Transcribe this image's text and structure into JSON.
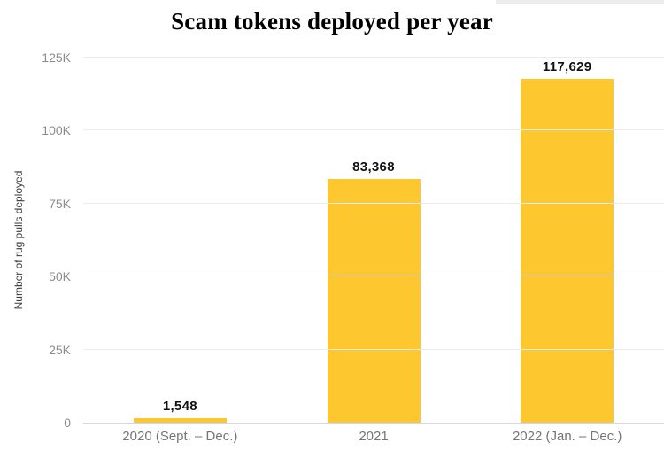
{
  "chart_data": {
    "type": "bar",
    "title": "Scam tokens deployed per year",
    "xlabel": "",
    "ylabel": "Number of rug pulls deployed",
    "categories": [
      "2020 (Sept. – Dec.)",
      "2021",
      "2022 (Jan. – Dec.)"
    ],
    "values": [
      1548,
      83368,
      117629
    ],
    "value_labels": [
      "1,548",
      "83,368",
      "117,629"
    ],
    "ylim": [
      0,
      125000
    ],
    "yticks": [
      {
        "value": 0,
        "label": "0"
      },
      {
        "value": 25000,
        "label": "25K"
      },
      {
        "value": 50000,
        "label": "50K"
      },
      {
        "value": 75000,
        "label": "75K"
      },
      {
        "value": 100000,
        "label": "100K"
      },
      {
        "value": 125000,
        "label": "125K"
      }
    ],
    "grid": "horizontal",
    "legend": "none",
    "bar_color": "#FDC82F"
  },
  "colors": {
    "bar": "#FDC82F",
    "gridline": "#ebebeb",
    "axis_line": "#d8d8d8",
    "y_tick_label": "#8c8c8c",
    "x_tick_label": "#757575",
    "axis_title": "#3d3d3d",
    "value_label": "#111111",
    "title": "#000000",
    "background": "#ffffff",
    "top_strip": "#ededed"
  }
}
